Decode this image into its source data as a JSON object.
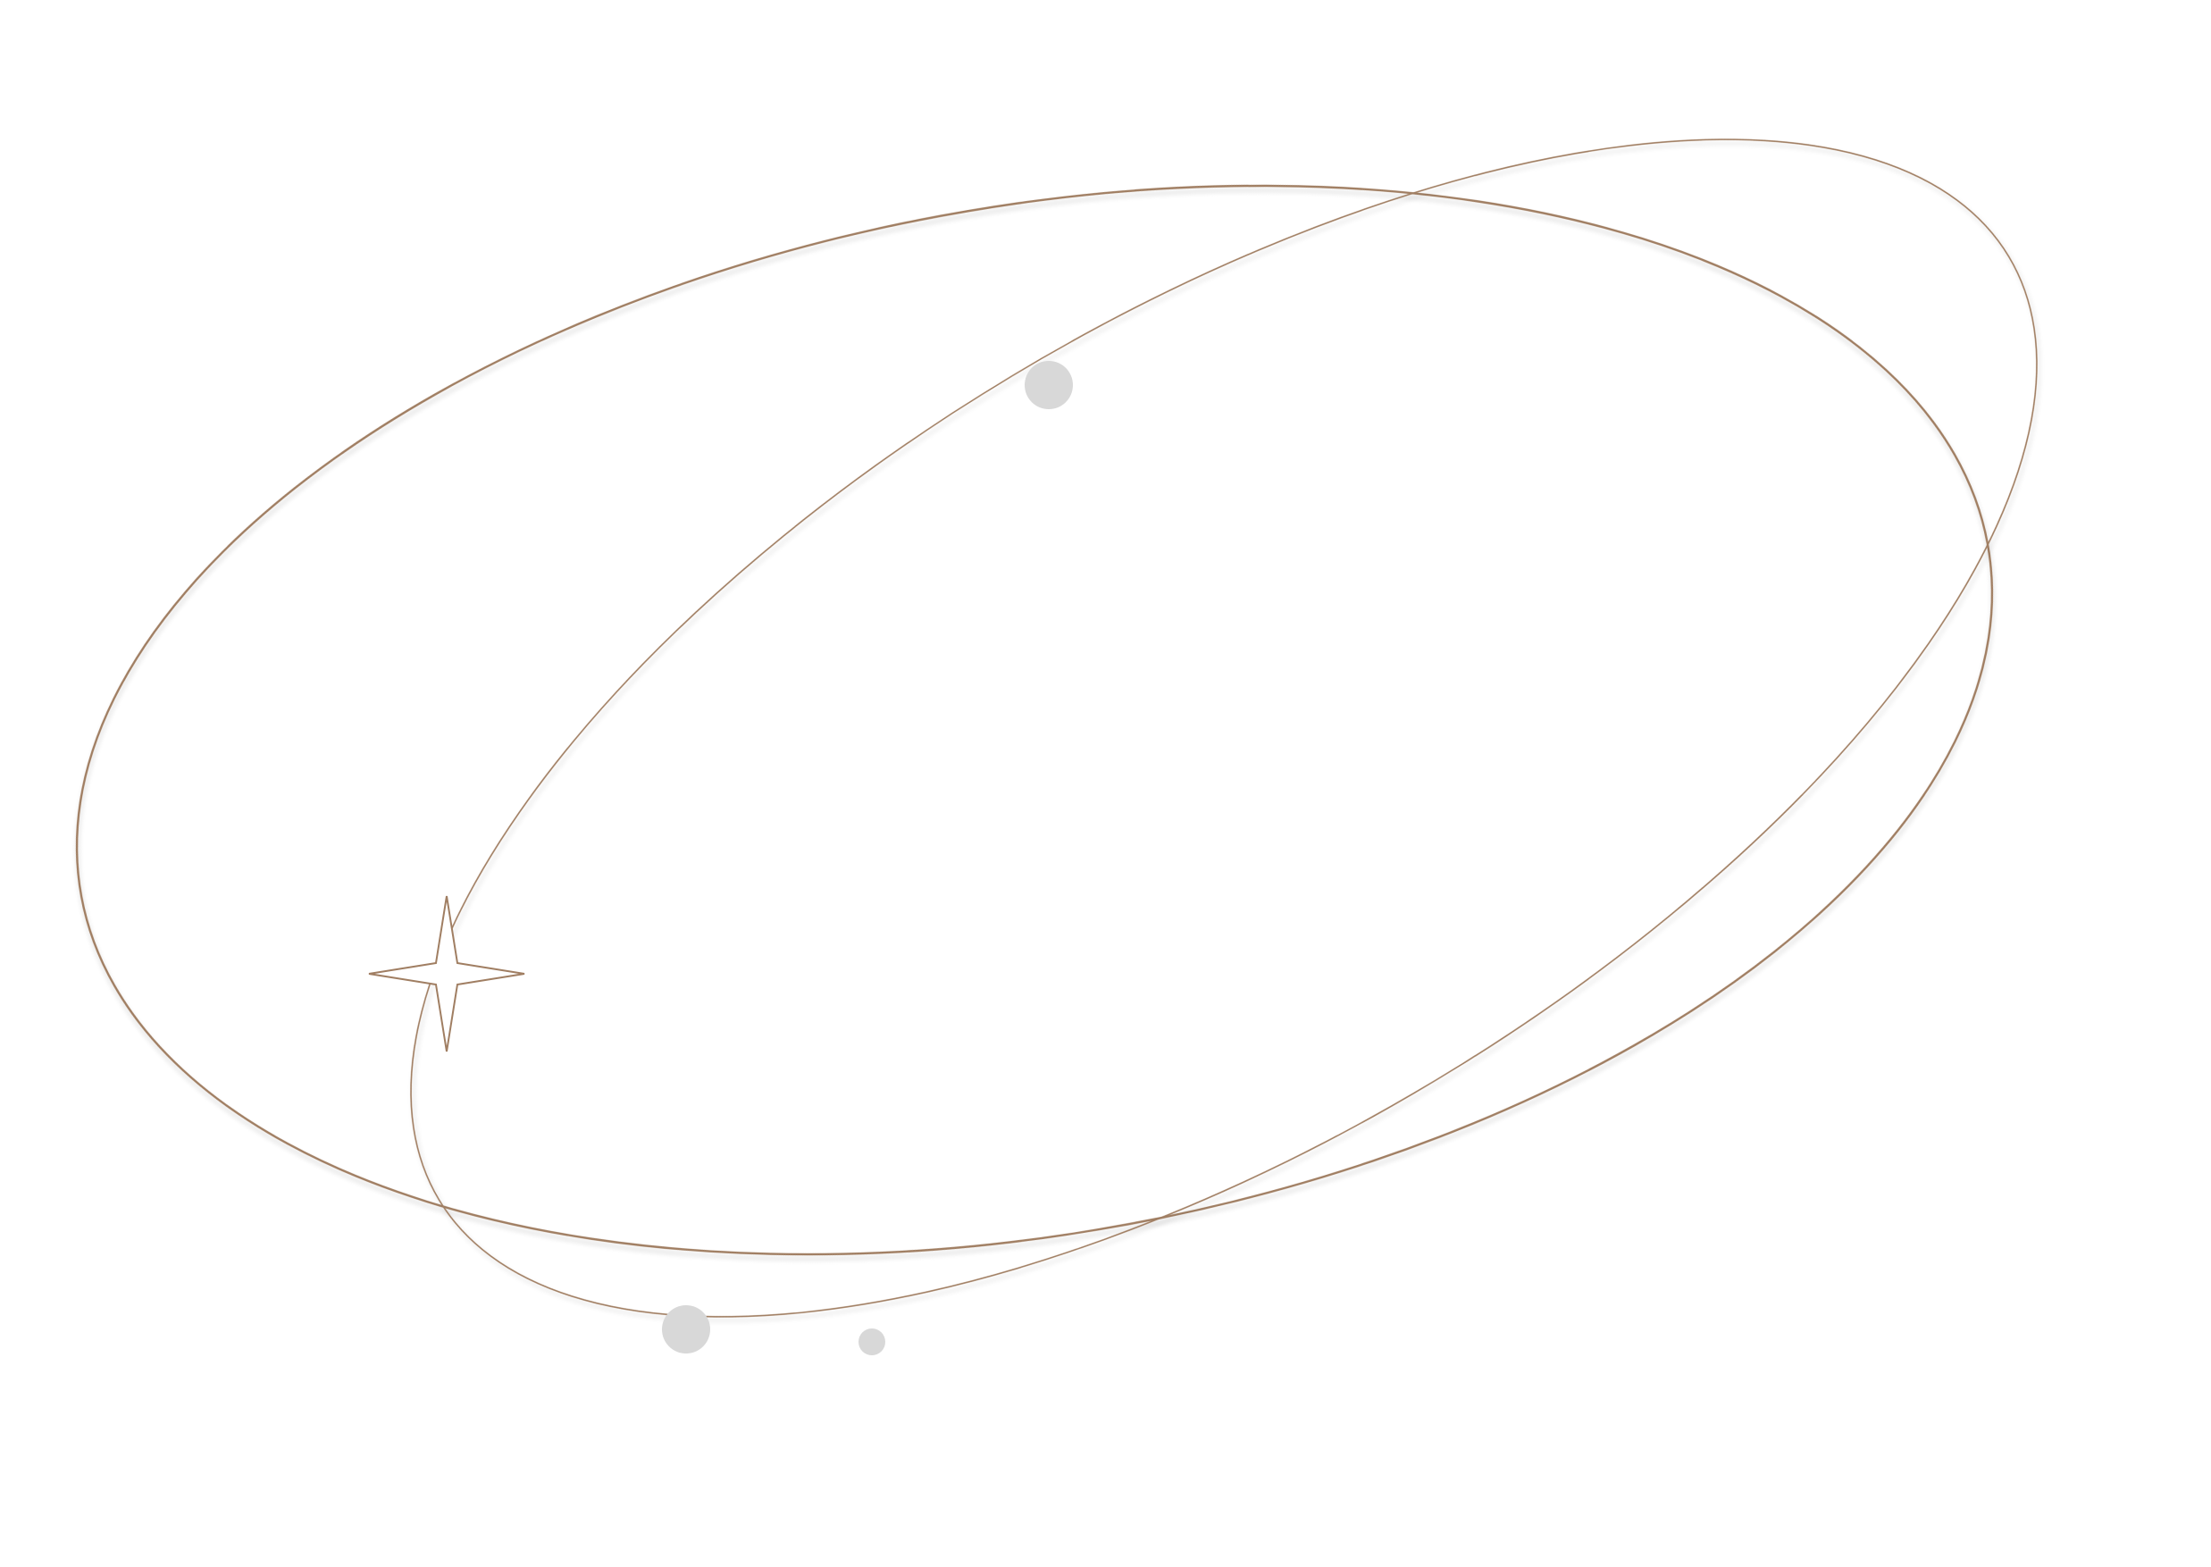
{
  "colors": {
    "background": "#ffffff",
    "orbit_stroke": "#a07e62",
    "orbit_shadow": "#d9d2c8",
    "dot_fill": "#d8d8d8",
    "sparkle_stroke": "#a07e62"
  },
  "decorations": {
    "orbits": [
      "outer-orbit",
      "inner-orbit"
    ],
    "dots": [
      "upper-dot",
      "lower-left-dot",
      "lower-small-dot"
    ],
    "sparkle": "four-point-star"
  }
}
